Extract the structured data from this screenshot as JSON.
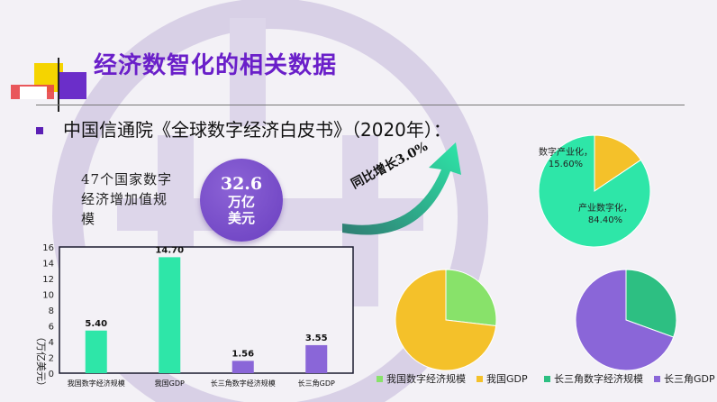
{
  "header": {
    "title": "经济数智化的相关数据",
    "subtitle": "中国信通院《全球数字经济白皮书》（2020年）："
  },
  "highlight": {
    "description": "47个国家数字经济增加值规模",
    "value": "32.6",
    "unit_line1": "万亿",
    "unit_line2": "美元"
  },
  "growth": {
    "label": "同比增长3.0%"
  },
  "colors": {
    "teal": "#2ee6a8",
    "purple": "#8a66d8",
    "green": "#88e26a",
    "yellow": "#f4c12a",
    "accent": "#6a1fc9"
  },
  "chart_data": [
    {
      "type": "bar",
      "ylabel": "（万亿美元）",
      "ylim": [
        0,
        16
      ],
      "yticks": [
        0,
        2,
        4,
        6,
        8,
        10,
        12,
        14,
        16
      ],
      "categories": [
        "我国数字经济规模",
        "我国GDP",
        "长三角数字经济规模",
        "长三角GDP"
      ],
      "values": [
        5.4,
        14.7,
        1.56,
        3.55
      ],
      "value_labels": [
        "5.40",
        "14.70",
        "1.56",
        "3.55"
      ],
      "bar_colors": [
        "#2ee6a8",
        "#2ee6a8",
        "#8a66d8",
        "#8a66d8"
      ]
    },
    {
      "type": "pie",
      "labels": [
        "数字产业化",
        "产业数字化"
      ],
      "values": [
        15.6,
        84.4
      ],
      "slice_labels": [
        "数字产业化，",
        "产业数字化，"
      ],
      "percent_labels": [
        "15.60%",
        "84.40%"
      ],
      "colors": [
        "#f4c12a",
        "#2ee6a8"
      ]
    },
    {
      "type": "pie",
      "labels": [
        "我国数字经济规模",
        "我国GDP"
      ],
      "values": [
        5.4,
        14.7
      ],
      "colors": [
        "#88e26a",
        "#f4c12a"
      ],
      "legend": "bottom"
    },
    {
      "type": "pie",
      "labels": [
        "长三角数字经济规模",
        "长三角GDP"
      ],
      "values": [
        1.56,
        3.55
      ],
      "colors": [
        "#2dbf82",
        "#8a66d8"
      ],
      "legend": "bottom"
    }
  ]
}
